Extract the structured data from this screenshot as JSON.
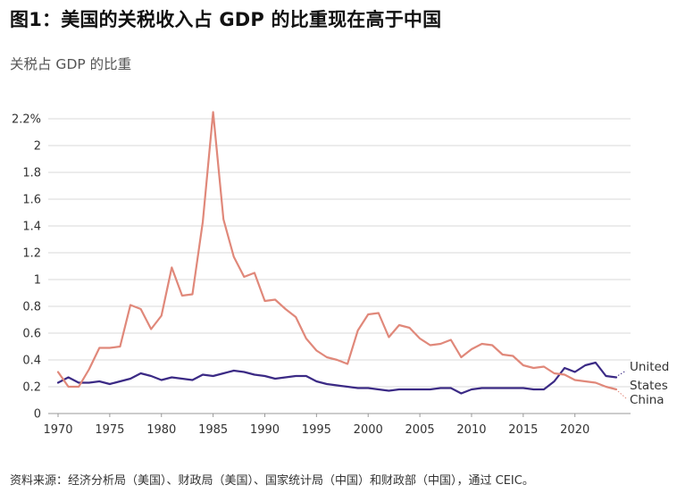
{
  "title": "图1：美国的关税收入占 GDP 的比重现在高于中国",
  "subtitle": "关税占 GDP 的比重",
  "source": "资料来源：经济分析局（美国）、财政局（美国）、国家统计局（中国）和财政部（中国），通过 CEIC。",
  "colors": {
    "us": "#3b2a85",
    "china": "#e0887a",
    "grid": "#d9d9d9"
  },
  "chart_data": {
    "type": "line",
    "title": "",
    "xlabel": "",
    "ylabel": "",
    "xlim": [
      1970,
      2024
    ],
    "ylim": [
      0,
      2.2
    ],
    "y_ticks": [
      {
        "value": 0,
        "label": "0"
      },
      {
        "value": 0.2,
        "label": "0.2"
      },
      {
        "value": 0.4,
        "label": "0.4"
      },
      {
        "value": 0.6,
        "label": "0.6"
      },
      {
        "value": 0.8,
        "label": "0.8"
      },
      {
        "value": 1.0,
        "label": "1"
      },
      {
        "value": 1.2,
        "label": "1.2"
      },
      {
        "value": 1.4,
        "label": "1.4"
      },
      {
        "value": 1.6,
        "label": "1.6"
      },
      {
        "value": 1.8,
        "label": "1.8"
      },
      {
        "value": 2.0,
        "label": "2"
      },
      {
        "value": 2.2,
        "label": "2.2%"
      }
    ],
    "x_ticks": [
      {
        "value": 1970,
        "label": "1970"
      },
      {
        "value": 1975,
        "label": "1975"
      },
      {
        "value": 1980,
        "label": "1980"
      },
      {
        "value": 1985,
        "label": "1985"
      },
      {
        "value": 1990,
        "label": "1990"
      },
      {
        "value": 1995,
        "label": "1995"
      },
      {
        "value": 2000,
        "label": "2000"
      },
      {
        "value": 2005,
        "label": "2005"
      },
      {
        "value": 2010,
        "label": "2010"
      },
      {
        "value": 2015,
        "label": "2015"
      },
      {
        "value": 2020,
        "label": "2020"
      }
    ],
    "grid": true,
    "x": [
      1970,
      1971,
      1972,
      1973,
      1974,
      1975,
      1976,
      1977,
      1978,
      1979,
      1980,
      1981,
      1982,
      1983,
      1984,
      1985,
      1986,
      1987,
      1988,
      1989,
      1990,
      1991,
      1992,
      1993,
      1994,
      1995,
      1996,
      1997,
      1998,
      1999,
      2000,
      2001,
      2002,
      2003,
      2004,
      2005,
      2006,
      2007,
      2008,
      2009,
      2010,
      2011,
      2012,
      2013,
      2014,
      2015,
      2016,
      2017,
      2018,
      2019,
      2020,
      2021,
      2022,
      2023,
      2024
    ],
    "series": [
      {
        "key": "us",
        "name": "United States",
        "label_lines": [
          "United",
          "States"
        ],
        "values": [
          0.23,
          0.27,
          0.23,
          0.23,
          0.24,
          0.22,
          0.24,
          0.26,
          0.3,
          0.28,
          0.25,
          0.27,
          0.26,
          0.25,
          0.29,
          0.28,
          0.3,
          0.32,
          0.31,
          0.29,
          0.28,
          0.26,
          0.27,
          0.28,
          0.28,
          0.24,
          0.22,
          0.21,
          0.2,
          0.19,
          0.19,
          0.18,
          0.17,
          0.18,
          0.18,
          0.18,
          0.18,
          0.19,
          0.19,
          0.15,
          0.18,
          0.19,
          0.19,
          0.19,
          0.19,
          0.19,
          0.18,
          0.18,
          0.24,
          0.34,
          0.31,
          0.36,
          0.38,
          0.28,
          0.27
        ]
      },
      {
        "key": "china",
        "name": "China",
        "label_lines": [
          "China"
        ],
        "values": [
          0.31,
          0.2,
          0.2,
          0.33,
          0.49,
          0.49,
          0.5,
          0.81,
          0.78,
          0.63,
          0.73,
          1.09,
          0.88,
          0.89,
          1.43,
          2.25,
          1.45,
          1.17,
          1.02,
          1.05,
          0.84,
          0.85,
          0.78,
          0.72,
          0.56,
          0.47,
          0.42,
          0.4,
          0.37,
          0.62,
          0.74,
          0.75,
          0.57,
          0.66,
          0.64,
          0.56,
          0.51,
          0.52,
          0.55,
          0.42,
          0.48,
          0.52,
          0.51,
          0.44,
          0.43,
          0.36,
          0.34,
          0.35,
          0.3,
          0.29,
          0.25,
          0.24,
          0.23,
          0.2,
          0.18
        ]
      }
    ]
  }
}
